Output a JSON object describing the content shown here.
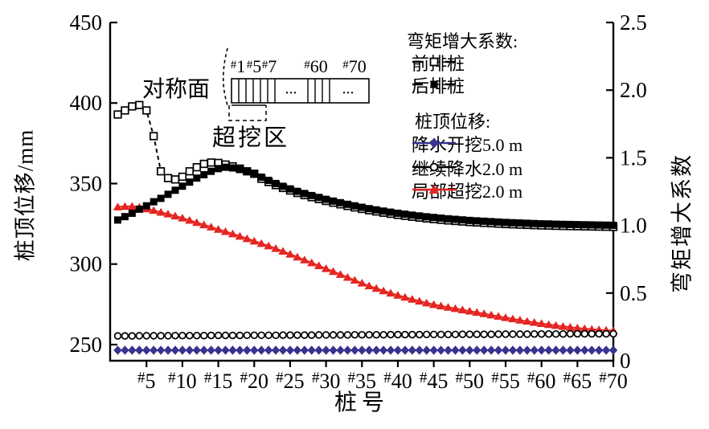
{
  "figure": {
    "x_axis_label": "桩号",
    "left_axis_label": "桩顶位移/mm",
    "right_axis_label": "弯矩增大系数"
  },
  "legend": {
    "moment_header": "弯矩增大系数:",
    "moment_items": [
      {
        "label": "前排桩",
        "marker": "open-square",
        "line": "dashed",
        "color": "#000000"
      },
      {
        "label": "后排桩",
        "marker": "filled-square",
        "line": "dashed",
        "color": "#000000"
      }
    ],
    "disp_header": "桩顶位移:",
    "disp_items": [
      {
        "label": "降水开挖5.0 m",
        "marker": "filled-diamond",
        "line": "solid",
        "color": "#37338f"
      },
      {
        "label": "继续降水2.0 m",
        "marker": "open-circle",
        "line": "solid",
        "color": "#000000"
      },
      {
        "label": "局部超挖2.0 m",
        "marker": "filled-triangle",
        "line": "solid",
        "color": "#e42520"
      }
    ]
  },
  "inset": {
    "symmetry_label": "对称面",
    "excavation_label": "超挖区",
    "hash_prefix": "#",
    "pile_labels": [
      "1",
      "5",
      "7",
      "60",
      "70"
    ],
    "ellipsis": "···"
  },
  "chart_data": {
    "type": "line",
    "title": "",
    "x_label": "桩号",
    "x_tick_prefix": "#",
    "x_ticks": [
      5,
      10,
      15,
      20,
      25,
      30,
      35,
      40,
      45,
      50,
      55,
      60,
      65,
      70
    ],
    "x_range": [
      1,
      70
    ],
    "grid": false,
    "legend_position": "top-right-inside",
    "left_axis": {
      "label": "桩顶位移/mm",
      "unit": "mm",
      "range": [
        240,
        450
      ],
      "ticks": [
        250,
        300,
        350,
        400,
        450
      ],
      "tick_labels": [
        "250",
        "300",
        "350",
        "400",
        "450"
      ]
    },
    "right_axis": {
      "label": "弯矩增大系数",
      "range": [
        0,
        2.5
      ],
      "ticks": [
        0,
        0.5,
        1.0,
        1.5,
        2.0,
        2.5
      ],
      "tick_labels": [
        "0",
        "0.5",
        "1.0",
        "1.5",
        "2.0",
        "2.5"
      ]
    },
    "series": [
      {
        "id": "overexcavation-displacement",
        "name": "局部超挖2.0 m",
        "group": "桩顶位移",
        "axis": "left",
        "color": "#e42520",
        "line": "solid",
        "marker": "filled-triangle",
        "values": [
          335.5,
          335.8,
          335.9,
          335.3,
          334.3,
          333.3,
          332.2,
          331.1,
          329.9,
          328.6,
          327.2,
          325.8,
          324.4,
          323.0,
          321.6,
          320.2,
          318.8,
          317.3,
          315.8,
          314.3,
          312.8,
          311.3,
          309.7,
          308.0,
          306.2,
          304.4,
          302.6,
          300.8,
          299.0,
          297.2,
          295.4,
          293.6,
          291.8,
          290.0,
          288.2,
          286.5,
          284.9,
          283.4,
          282.0,
          280.7,
          279.4,
          278.2,
          277.0,
          275.9,
          274.9,
          274.0,
          273.2,
          272.4,
          271.6,
          270.8,
          270.0,
          269.2,
          268.4,
          267.6,
          266.8,
          266.0,
          265.2,
          264.5,
          263.8,
          263.1,
          262.5,
          261.9,
          261.3,
          260.8,
          260.3,
          259.9,
          259.5,
          259.2,
          258.9,
          258.7
        ]
      },
      {
        "id": "front-pile-moment",
        "name": "前排桩",
        "group": "弯矩增大系数",
        "axis": "right",
        "color": "#000000",
        "line": "dashed",
        "marker": "open-square",
        "values": [
          1.82,
          1.85,
          1.88,
          1.89,
          1.85,
          1.66,
          1.4,
          1.35,
          1.34,
          1.36,
          1.4,
          1.43,
          1.455,
          1.465,
          1.462,
          1.45,
          1.437,
          1.42,
          1.4,
          1.382,
          1.345,
          1.321,
          1.298,
          1.277,
          1.258,
          1.24,
          1.224,
          1.209,
          1.195,
          1.181,
          1.168,
          1.156,
          1.144,
          1.133,
          1.122,
          1.112,
          1.103,
          1.094,
          1.086,
          1.078,
          1.071,
          1.064,
          1.058,
          1.052,
          1.047,
          1.042,
          1.037,
          1.033,
          1.029,
          1.025,
          1.022,
          1.019,
          1.016,
          1.013,
          1.01,
          1.008,
          1.006,
          1.004,
          1.002,
          1.0,
          0.999,
          0.997,
          0.996,
          0.995,
          0.994,
          0.993,
          0.992,
          0.991,
          0.99,
          0.989
        ]
      },
      {
        "id": "back-pile-moment",
        "name": "后排桩",
        "group": "弯矩增大系数",
        "axis": "right",
        "color": "#000000",
        "line": "dashed",
        "marker": "filled-square",
        "values": [
          1.04,
          1.065,
          1.09,
          1.12,
          1.145,
          1.175,
          1.2,
          1.23,
          1.26,
          1.29,
          1.32,
          1.35,
          1.375,
          1.4,
          1.42,
          1.43,
          1.425,
          1.413,
          1.398,
          1.38,
          1.357,
          1.333,
          1.31,
          1.289,
          1.27,
          1.252,
          1.236,
          1.221,
          1.207,
          1.193,
          1.18,
          1.168,
          1.156,
          1.145,
          1.134,
          1.124,
          1.115,
          1.106,
          1.098,
          1.09,
          1.083,
          1.076,
          1.07,
          1.064,
          1.059,
          1.054,
          1.049,
          1.045,
          1.041,
          1.037,
          1.034,
          1.031,
          1.028,
          1.025,
          1.022,
          1.02,
          1.018,
          1.016,
          1.014,
          1.012,
          1.011,
          1.009,
          1.008,
          1.007,
          1.006,
          1.005,
          1.004,
          1.003,
          1.002,
          1.001
        ]
      },
      {
        "id": "continue-dewater-displacement",
        "name": "继续降水2.0 m",
        "group": "桩顶位移",
        "axis": "left",
        "color": "#000000",
        "line": "solid",
        "marker": "open-circle",
        "values": [
          255.4,
          255.4,
          255.4,
          255.5,
          255.5,
          255.5,
          255.5,
          255.5,
          255.6,
          255.6,
          255.6,
          255.6,
          255.6,
          255.7,
          255.7,
          255.7,
          255.7,
          255.7,
          255.8,
          255.8,
          255.8,
          255.8,
          255.8,
          255.9,
          255.9,
          255.9,
          255.9,
          255.9,
          256.0,
          256.0,
          256.0,
          256.0,
          256.0,
          256.1,
          256.1,
          256.1,
          256.1,
          256.1,
          256.2,
          256.2,
          256.2,
          256.2,
          256.2,
          256.3,
          256.3,
          256.3,
          256.3,
          256.3,
          256.4,
          256.4,
          256.4,
          256.4,
          256.4,
          256.5,
          256.5,
          256.5,
          256.5,
          256.5,
          256.6,
          256.6,
          256.6,
          256.6,
          256.6,
          256.7,
          256.7,
          256.7,
          256.7,
          256.7,
          256.7,
          256.7
        ]
      },
      {
        "id": "dewater-excavate-displacement",
        "name": "降水开挖5.0 m",
        "group": "桩顶位移",
        "axis": "left",
        "color": "#37338f",
        "line": "solid",
        "marker": "filled-diamond",
        "values": [
          246.5,
          246.5,
          246.5,
          246.5,
          246.5,
          246.5,
          246.5,
          246.5,
          246.5,
          246.5,
          246.5,
          246.5,
          246.5,
          246.5,
          246.5,
          246.5,
          246.5,
          246.5,
          246.5,
          246.5,
          246.5,
          246.5,
          246.5,
          246.5,
          246.5,
          246.5,
          246.5,
          246.5,
          246.5,
          246.5,
          246.5,
          246.5,
          246.5,
          246.5,
          246.5,
          246.5,
          246.5,
          246.5,
          246.5,
          246.5,
          246.5,
          246.5,
          246.5,
          246.5,
          246.5,
          246.5,
          246.5,
          246.5,
          246.5,
          246.5,
          246.5,
          246.5,
          246.5,
          246.5,
          246.5,
          246.5,
          246.5,
          246.5,
          246.5,
          246.5,
          246.5,
          246.5,
          246.5,
          246.5,
          246.5,
          246.5,
          246.5,
          246.5,
          246.5,
          246.5
        ]
      }
    ]
  }
}
